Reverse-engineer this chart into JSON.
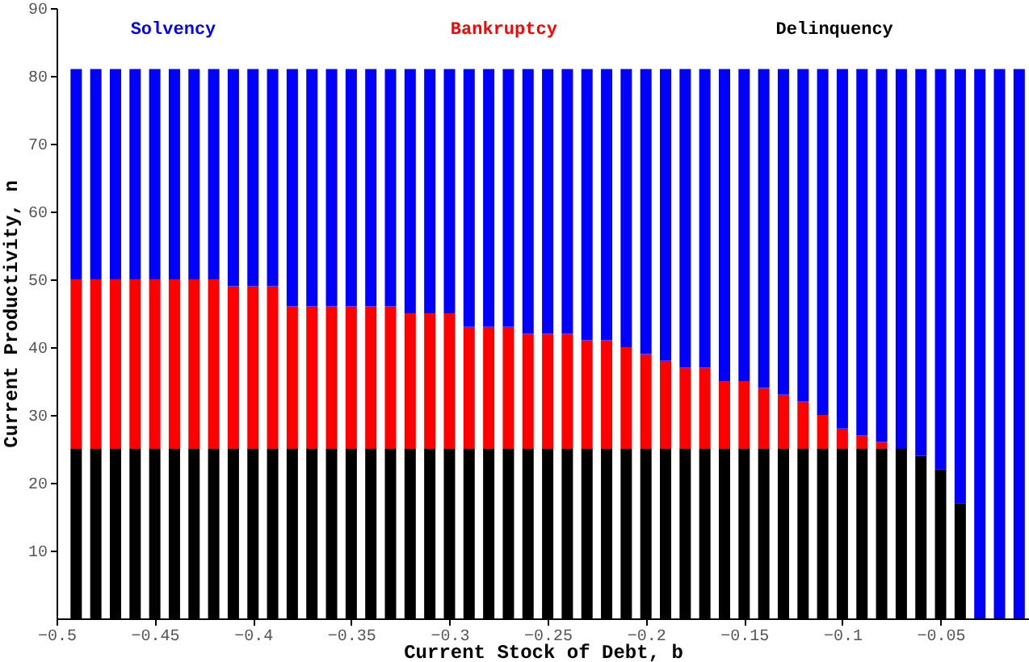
{
  "chart_data": {
    "type": "bar",
    "stacked": true,
    "xlabel": "Current Stock of Debt, b",
    "ylabel": "Current Productivity, n",
    "x": [
      -0.49,
      -0.48,
      -0.47,
      -0.46,
      -0.45,
      -0.44,
      -0.43,
      -0.42,
      -0.41,
      -0.4,
      -0.39,
      -0.38,
      -0.37,
      -0.36,
      -0.35,
      -0.34,
      -0.33,
      -0.32,
      -0.31,
      -0.3,
      -0.29,
      -0.28,
      -0.27,
      -0.26,
      -0.25,
      -0.24,
      -0.23,
      -0.22,
      -0.21,
      -0.2,
      -0.19,
      -0.18,
      -0.17,
      -0.16,
      -0.15,
      -0.14,
      -0.13,
      -0.12,
      -0.11,
      -0.1,
      -0.09,
      -0.08,
      -0.07,
      -0.06,
      -0.05,
      -0.04,
      -0.03,
      -0.02,
      -0.01
    ],
    "series": [
      {
        "name": "Delinquency",
        "color": "#000000",
        "values": [
          25,
          25,
          25,
          25,
          25,
          25,
          25,
          25,
          25,
          25,
          25,
          25,
          25,
          25,
          25,
          25,
          25,
          25,
          25,
          25,
          25,
          25,
          25,
          25,
          25,
          25,
          25,
          25,
          25,
          25,
          25,
          25,
          25,
          25,
          25,
          25,
          25,
          25,
          25,
          25,
          25,
          25,
          25,
          24,
          22,
          17,
          0,
          0,
          0
        ]
      },
      {
        "name": "Bankruptcy",
        "color": "#ff0000",
        "values": [
          25,
          25,
          25,
          25,
          25,
          25,
          25,
          25,
          24,
          24,
          24,
          21,
          21,
          21,
          21,
          21,
          21,
          20,
          20,
          20,
          18,
          18,
          18,
          17,
          17,
          17,
          16,
          16,
          15,
          14,
          13,
          12,
          12,
          10,
          10,
          9,
          8,
          7,
          5,
          3,
          2,
          1,
          0,
          0,
          0,
          0,
          0,
          0,
          0
        ]
      },
      {
        "name": "Solvency",
        "color": "#0000ff",
        "values": [
          31,
          31,
          31,
          31,
          31,
          31,
          31,
          31,
          32,
          32,
          32,
          35,
          35,
          35,
          35,
          35,
          35,
          36,
          36,
          36,
          38,
          38,
          38,
          39,
          39,
          39,
          40,
          40,
          41,
          42,
          43,
          44,
          44,
          46,
          46,
          47,
          48,
          49,
          51,
          53,
          54,
          55,
          56,
          57,
          59,
          64,
          81,
          81,
          81
        ]
      }
    ],
    "xlim": [
      -0.5,
      -0.005
    ],
    "xticks": [
      -0.5,
      -0.45,
      -0.4,
      -0.35,
      -0.3,
      -0.25,
      -0.2,
      -0.15,
      -0.1,
      -0.05
    ],
    "ylim": [
      0,
      90
    ],
    "yticks": [
      10,
      20,
      30,
      40,
      50,
      60,
      70,
      80,
      90
    ],
    "grid": false,
    "legend": "top"
  }
}
